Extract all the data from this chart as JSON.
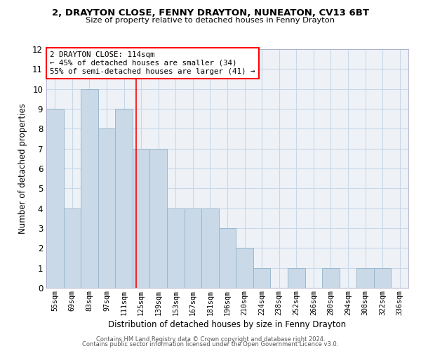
{
  "title": "2, DRAYTON CLOSE, FENNY DRAYTON, NUNEATON, CV13 6BT",
  "subtitle": "Size of property relative to detached houses in Fenny Drayton",
  "xlabel": "Distribution of detached houses by size in Fenny Drayton",
  "ylabel": "Number of detached properties",
  "categories": [
    "55sqm",
    "69sqm",
    "83sqm",
    "97sqm",
    "111sqm",
    "125sqm",
    "139sqm",
    "153sqm",
    "167sqm",
    "181sqm",
    "196sqm",
    "210sqm",
    "224sqm",
    "238sqm",
    "252sqm",
    "266sqm",
    "280sqm",
    "294sqm",
    "308sqm",
    "322sqm",
    "336sqm"
  ],
  "values": [
    9,
    4,
    10,
    8,
    9,
    7,
    7,
    4,
    4,
    4,
    3,
    2,
    1,
    0,
    1,
    0,
    1,
    0,
    1,
    1,
    0
  ],
  "bar_color": "#c9d9e8",
  "bar_edge_color": "#9ab8cc",
  "grid_color": "#c8d8e8",
  "red_line_x": 4.7,
  "annotation_line1": "2 DRAYTON CLOSE: 114sqm",
  "annotation_line2": "← 45% of detached houses are smaller (34)",
  "annotation_line3": "55% of semi-detached houses are larger (41) →",
  "annotation_box_color": "white",
  "annotation_box_edge": "red",
  "ylim": [
    0,
    12
  ],
  "yticks": [
    0,
    1,
    2,
    3,
    4,
    5,
    6,
    7,
    8,
    9,
    10,
    11,
    12
  ],
  "footer1": "Contains HM Land Registry data © Crown copyright and database right 2024.",
  "footer2": "Contains public sector information licensed under the Open Government Licence v3.0.",
  "bg_color": "#eef2f7"
}
